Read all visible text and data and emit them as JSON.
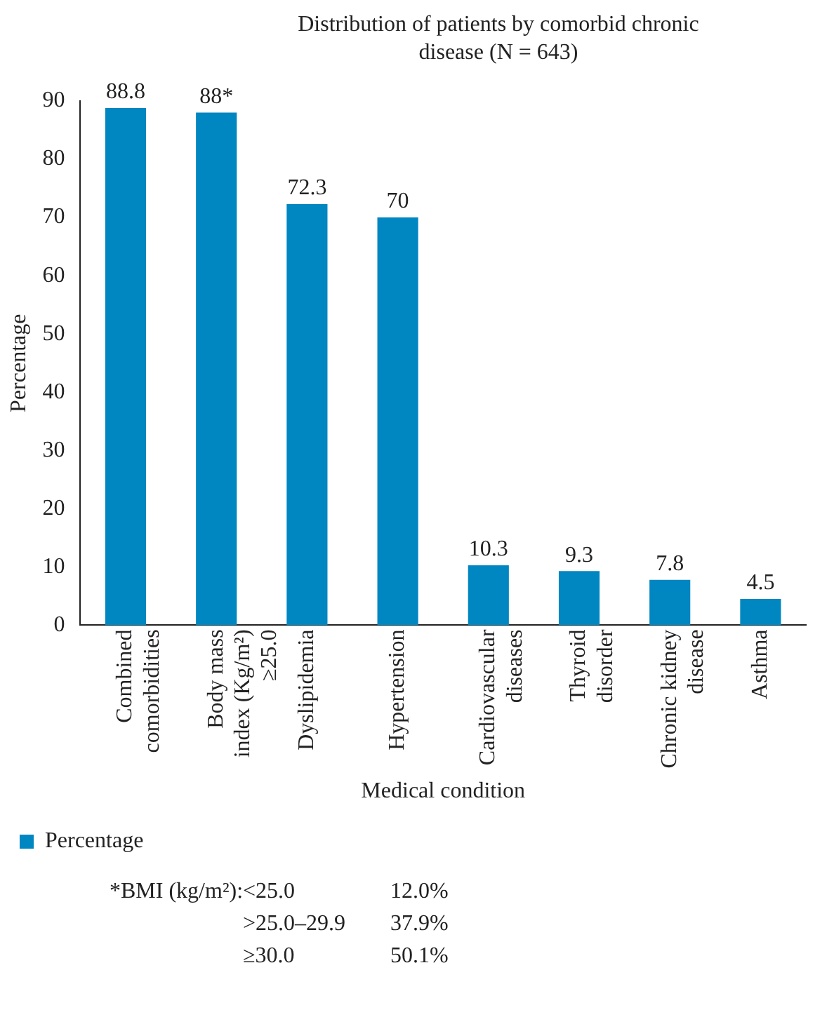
{
  "chart_data": {
    "type": "bar",
    "title": "Distribution of patients by comorbid chronic disease (N = 643)",
    "xlabel": "Medical condition",
    "ylabel": "Percentage",
    "categories": [
      "Combined comorbidities",
      "Body mass index (Kg/m²) ≥25.0",
      "Dyslipidemia",
      "Hypertension",
      "Cardiovascular diseases",
      "Thyroid disorder",
      "Chronic kidney disease",
      "Asthma"
    ],
    "series": [
      {
        "name": "Percentage",
        "color": "#0086c0",
        "values": [
          88.8,
          88,
          72.3,
          70,
          10.3,
          9.3,
          7.8,
          4.5
        ],
        "value_labels": [
          "88.8",
          "88*",
          "72.3",
          "70",
          "10.3",
          "9.3",
          "7.8",
          "4.5"
        ]
      }
    ],
    "ylim": [
      0,
      90
    ],
    "yticks": [
      0,
      10,
      20,
      30,
      40,
      50,
      60,
      70,
      80,
      90
    ],
    "grid": false,
    "legend": "bottom left",
    "annotations": [
      "*BMI (kg/m²):",
      "<25.0",
      "12.0%",
      ">25.0–29.9",
      "37.9%",
      "≥30.0",
      "50.1%"
    ]
  }
}
